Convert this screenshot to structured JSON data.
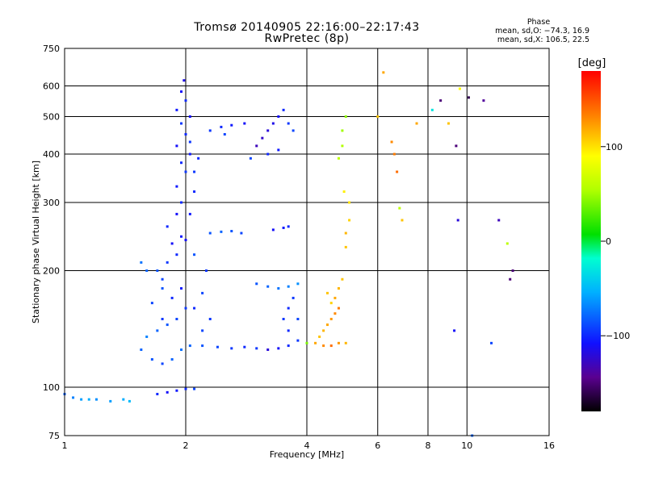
{
  "header": {
    "title": "Tromsø 20140905 22:16:00–22:17:43",
    "subtitle": "RwPretec (8p)"
  },
  "phase_stats": {
    "label": "Phase",
    "line_o": "mean, sd,O: −74.3, 16.9",
    "line_x": "mean, sd,X: 106.5, 22.5"
  },
  "colorbar": {
    "unit_label": "[deg]",
    "ticks": [
      {
        "value": 100,
        "label": "100"
      },
      {
        "value": 0,
        "label": "0"
      },
      {
        "value": -100,
        "label": "−100"
      }
    ],
    "range": [
      -180,
      180
    ]
  },
  "chart_data": {
    "type": "scatter",
    "title": "Tromsø 20140905 22:16:00–22:17:43",
    "subtitle": "RwPretec (8p)",
    "xlabel": "Frequency [MHz]",
    "ylabel": "Stationary phase Virtual Height [km]",
    "x_scale": "log",
    "y_scale": "log",
    "xlim": [
      1,
      16
    ],
    "ylim": [
      75,
      750
    ],
    "grid": true,
    "x_ticks": [
      {
        "value": 1,
        "label": "1"
      },
      {
        "value": 2,
        "label": "2"
      },
      {
        "value": 4,
        "label": "4"
      },
      {
        "value": 6,
        "label": "6"
      },
      {
        "value": 8,
        "label": "8"
      },
      {
        "value": 10,
        "label": "10"
      },
      {
        "value": 16,
        "label": "16"
      }
    ],
    "y_ticks": [
      {
        "value": 75,
        "label": "75"
      },
      {
        "value": 100,
        "label": "100"
      },
      {
        "value": 200,
        "label": "200"
      },
      {
        "value": 300,
        "label": "300"
      },
      {
        "value": 400,
        "label": "400"
      },
      {
        "value": 500,
        "label": "500"
      },
      {
        "value": 600,
        "label": "600"
      },
      {
        "value": 750,
        "label": "750"
      }
    ],
    "color_variable": "phase",
    "points": [
      [
        1.0,
        96,
        -80
      ],
      [
        1.05,
        94,
        -70
      ],
      [
        1.1,
        93,
        -60
      ],
      [
        1.15,
        93,
        -55
      ],
      [
        1.2,
        93,
        -65
      ],
      [
        1.3,
        92,
        -60
      ],
      [
        1.4,
        93,
        -55
      ],
      [
        1.45,
        92,
        -50
      ],
      [
        1.7,
        96,
        -100
      ],
      [
        1.8,
        97,
        -110
      ],
      [
        1.9,
        98,
        -105
      ],
      [
        2.0,
        99,
        -100
      ],
      [
        2.1,
        99,
        -90
      ],
      [
        1.55,
        125,
        -80
      ],
      [
        1.65,
        118,
        -85
      ],
      [
        1.75,
        115,
        -90
      ],
      [
        1.85,
        118,
        -80
      ],
      [
        1.95,
        125,
        -75
      ],
      [
        2.05,
        128,
        -80
      ],
      [
        2.2,
        128,
        -85
      ],
      [
        2.4,
        127,
        -90
      ],
      [
        2.6,
        126,
        -95
      ],
      [
        2.8,
        127,
        -100
      ],
      [
        3.0,
        126,
        -95
      ],
      [
        3.2,
        125,
        -120
      ],
      [
        3.4,
        126,
        -110
      ],
      [
        3.6,
        128,
        -100
      ],
      [
        3.8,
        132,
        -95
      ],
      [
        4.0,
        130,
        40
      ],
      [
        4.2,
        130,
        120
      ],
      [
        4.4,
        128,
        130
      ],
      [
        4.6,
        128,
        140
      ],
      [
        4.8,
        130,
        125
      ],
      [
        5.0,
        130,
        115
      ],
      [
        1.6,
        135,
        -70
      ],
      [
        1.7,
        140,
        -80
      ],
      [
        1.8,
        145,
        -85
      ],
      [
        1.9,
        150,
        -90
      ],
      [
        2.0,
        160,
        -95
      ],
      [
        1.85,
        170,
        -100
      ],
      [
        1.95,
        180,
        -105
      ],
      [
        1.75,
        190,
        -90
      ],
      [
        1.7,
        200,
        -85
      ],
      [
        1.8,
        210,
        -95
      ],
      [
        1.9,
        220,
        -100
      ],
      [
        1.85,
        235,
        -110
      ],
      [
        1.95,
        245,
        -105
      ],
      [
        1.8,
        260,
        -100
      ],
      [
        1.9,
        280,
        -110
      ],
      [
        1.95,
        300,
        -100
      ],
      [
        1.9,
        330,
        -105
      ],
      [
        2.0,
        360,
        -95
      ],
      [
        1.95,
        380,
        -100
      ],
      [
        2.05,
        400,
        -105
      ],
      [
        1.9,
        420,
        -110
      ],
      [
        2.0,
        450,
        -100
      ],
      [
        1.95,
        480,
        -95
      ],
      [
        2.05,
        500,
        -110
      ],
      [
        1.9,
        520,
        -105
      ],
      [
        2.0,
        550,
        -100
      ],
      [
        1.95,
        580,
        -110
      ],
      [
        1.98,
        620,
        -115
      ],
      [
        1.75,
        150,
        -95
      ],
      [
        1.65,
        165,
        -90
      ],
      [
        1.75,
        180,
        -85
      ],
      [
        1.6,
        200,
        -80
      ],
      [
        1.55,
        210,
        -75
      ],
      [
        2.0,
        240,
        -110
      ],
      [
        2.05,
        280,
        -105
      ],
      [
        2.1,
        320,
        -100
      ],
      [
        2.1,
        360,
        -95
      ],
      [
        2.15,
        390,
        -100
      ],
      [
        2.05,
        430,
        -95
      ],
      [
        2.2,
        140,
        -90
      ],
      [
        2.3,
        150,
        -95
      ],
      [
        2.1,
        160,
        -100
      ],
      [
        2.2,
        175,
        -90
      ],
      [
        2.25,
        200,
        -95
      ],
      [
        2.1,
        220,
        -85
      ],
      [
        2.3,
        250,
        -85
      ],
      [
        2.45,
        252,
        -80
      ],
      [
        2.6,
        253,
        -85
      ],
      [
        2.75,
        250,
        -90
      ],
      [
        2.3,
        460,
        -95
      ],
      [
        2.45,
        470,
        -100
      ],
      [
        2.6,
        475,
        -105
      ],
      [
        2.8,
        480,
        -110
      ],
      [
        2.5,
        450,
        -90
      ],
      [
        3.0,
        420,
        -130
      ],
      [
        3.1,
        440,
        -125
      ],
      [
        3.2,
        460,
        -120
      ],
      [
        3.3,
        480,
        -115
      ],
      [
        3.4,
        500,
        -110
      ],
      [
        3.5,
        520,
        -100
      ],
      [
        3.6,
        480,
        -95
      ],
      [
        3.7,
        460,
        -90
      ],
      [
        3.2,
        400,
        -100
      ],
      [
        3.4,
        410,
        -105
      ],
      [
        2.9,
        390,
        -90
      ],
      [
        3.3,
        255,
        -110
      ],
      [
        3.5,
        258,
        -105
      ],
      [
        3.6,
        260,
        -100
      ],
      [
        3.0,
        185,
        -85
      ],
      [
        3.2,
        182,
        -80
      ],
      [
        3.4,
        180,
        -75
      ],
      [
        3.6,
        182,
        -70
      ],
      [
        3.8,
        185,
        -65
      ],
      [
        3.5,
        150,
        -95
      ],
      [
        3.6,
        160,
        -100
      ],
      [
        3.7,
        170,
        -95
      ],
      [
        3.6,
        140,
        -100
      ],
      [
        3.8,
        150,
        -90
      ],
      [
        4.3,
        135,
        110
      ],
      [
        4.4,
        140,
        115
      ],
      [
        4.5,
        145,
        120
      ],
      [
        4.6,
        150,
        125
      ],
      [
        4.7,
        155,
        130
      ],
      [
        4.8,
        160,
        135
      ],
      [
        4.7,
        170,
        120
      ],
      [
        4.8,
        180,
        115
      ],
      [
        4.9,
        190,
        110
      ],
      [
        4.6,
        165,
        105
      ],
      [
        4.5,
        175,
        110
      ],
      [
        5.0,
        230,
        110
      ],
      [
        5.0,
        250,
        115
      ],
      [
        5.1,
        270,
        105
      ],
      [
        5.1,
        300,
        100
      ],
      [
        4.95,
        320,
        95
      ],
      [
        4.8,
        390,
        60
      ],
      [
        4.9,
        420,
        55
      ],
      [
        4.9,
        460,
        50
      ],
      [
        5.0,
        500,
        45
      ],
      [
        6.2,
        650,
        120
      ],
      [
        6.0,
        500,
        110
      ],
      [
        6.5,
        430,
        130
      ],
      [
        6.6,
        400,
        135
      ],
      [
        6.7,
        360,
        140
      ],
      [
        6.8,
        290,
        60
      ],
      [
        6.9,
        270,
        110
      ],
      [
        7.5,
        480,
        120
      ],
      [
        8.2,
        520,
        -30
      ],
      [
        8.6,
        550,
        -150
      ],
      [
        9.4,
        420,
        -150
      ],
      [
        9.5,
        270,
        -120
      ],
      [
        9.3,
        140,
        -110
      ],
      [
        10.1,
        560,
        -160
      ],
      [
        11.0,
        550,
        -140
      ],
      [
        11.5,
        130,
        -90
      ],
      [
        12.0,
        270,
        -130
      ],
      [
        12.6,
        235,
        60
      ],
      [
        13.0,
        200,
        -150
      ],
      [
        12.8,
        190,
        -150
      ],
      [
        10.3,
        75,
        -80
      ],
      [
        9.0,
        480,
        110
      ],
      [
        9.6,
        590,
        90
      ]
    ]
  }
}
